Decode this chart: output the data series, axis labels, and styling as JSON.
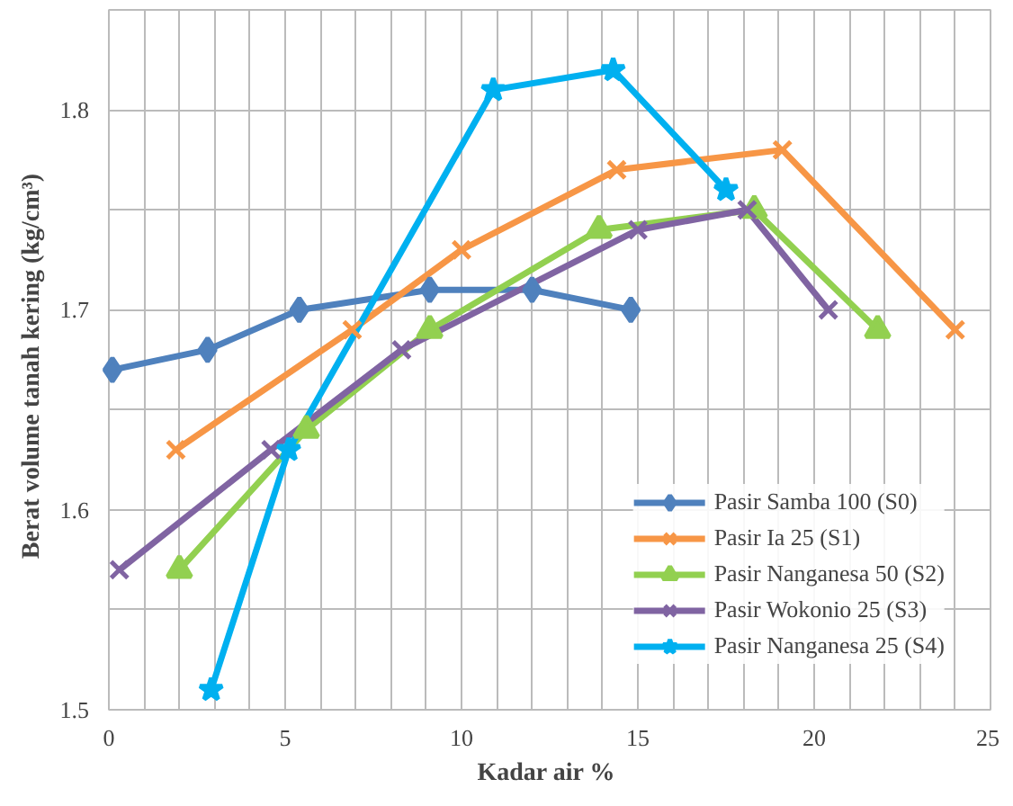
{
  "chart_data": {
    "type": "line",
    "xlabel": "Kadar  air %",
    "ylabel": "Berat volume  tanah  kering (kg/cm³)",
    "xlim": [
      0,
      25
    ],
    "ylim": [
      1.5,
      1.85
    ],
    "xticks": [
      0,
      {
        "value": 1,
        "label": null
      },
      {
        "value": 2,
        "label": null
      },
      {
        "value": 3,
        "label": null
      },
      {
        "value": 4,
        "label": null
      },
      5,
      {
        "value": 6,
        "label": null
      },
      {
        "value": 7,
        "label": null
      },
      {
        "value": 8,
        "label": null
      },
      {
        "value": 9,
        "label": null
      },
      10,
      {
        "value": 11,
        "label": null
      },
      {
        "value": 12,
        "label": null
      },
      {
        "value": 13,
        "label": null
      },
      {
        "value": 14,
        "label": null
      },
      15,
      {
        "value": 16,
        "label": null
      },
      {
        "value": 17,
        "label": null
      },
      {
        "value": 18,
        "label": null
      },
      {
        "value": 19,
        "label": null
      },
      20,
      {
        "value": 21,
        "label": null
      },
      {
        "value": 22,
        "label": null
      },
      {
        "value": 23,
        "label": null
      },
      {
        "value": 24,
        "label": null
      },
      25
    ],
    "yticks": [
      1.5,
      {
        "value": 1.55,
        "label": null
      },
      1.6,
      {
        "value": 1.65,
        "label": null
      },
      1.7,
      {
        "value": 1.75,
        "label": null
      },
      1.8,
      {
        "value": 1.85,
        "label": null
      }
    ],
    "grid": true,
    "legend": "bottom right",
    "line_style": "solid",
    "series": [
      {
        "name": "Pasir Samba 100 (S0)",
        "color": "#4f81bd",
        "marker": "diamond",
        "x": [
          0.1,
          2.8,
          5.4,
          9.1,
          12.0,
          14.8
        ],
        "values": [
          1.67,
          1.68,
          1.7,
          1.71,
          1.71,
          1.7
        ]
      },
      {
        "name": "Pasir Ia 25 (S1)",
        "color": "#f79646",
        "marker": "cross",
        "x": [
          1.9,
          6.9,
          10.0,
          14.4,
          19.1,
          24.0
        ],
        "values": [
          1.63,
          1.69,
          1.73,
          1.77,
          1.78,
          1.69
        ]
      },
      {
        "name": "Pasir Nanganesa 50 (S2)",
        "color": "#92d050",
        "marker": "triangle",
        "x": [
          2.0,
          5.6,
          9.1,
          13.9,
          18.3,
          21.8
        ],
        "values": [
          1.57,
          1.64,
          1.69,
          1.74,
          1.75,
          1.69
        ]
      },
      {
        "name": "Pasir Wokonio 25 (S3)",
        "color": "#8064a2",
        "marker": "cross",
        "x": [
          0.3,
          4.6,
          8.3,
          15.0,
          18.1,
          20.4
        ],
        "values": [
          1.57,
          1.63,
          1.68,
          1.74,
          1.75,
          1.7
        ]
      },
      {
        "name": "Pasir Nanganesa 25 (S4)",
        "color": "#00b0f0",
        "marker": "star",
        "x": [
          2.9,
          5.1,
          10.9,
          14.3,
          17.5
        ],
        "values": [
          1.51,
          1.63,
          1.81,
          1.82,
          1.76
        ]
      }
    ]
  }
}
